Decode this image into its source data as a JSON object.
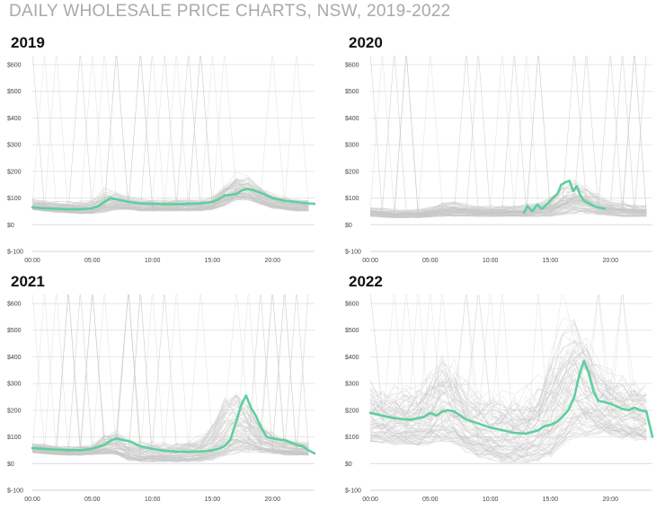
{
  "page_title": "DAILY WHOLESALE PRICE CHARTS, NSW, 2019-2022",
  "colors": {
    "highlight": "#5ecf9e",
    "background_lines": "#c8c8c8",
    "grid": "#e6e6e6",
    "axis": "#d6d6d6",
    "title_gray": "#a9a9a9"
  },
  "chart_data": [
    {
      "type": "line",
      "title": "2019",
      "xlabel": "",
      "ylabel": "",
      "ylim": [
        -100,
        600
      ],
      "xlim": [
        0,
        23.5
      ],
      "y_ticks": [
        -100,
        0,
        100,
        200,
        300,
        400,
        500,
        600
      ],
      "y_tick_labels": [
        "$-100",
        "$0",
        "$100",
        "$200",
        "$300",
        "$400",
        "$500",
        "$600"
      ],
      "x_ticks": [
        0,
        5,
        10,
        15,
        20
      ],
      "x_tick_labels": [
        "00:00",
        "05:00",
        "10:00",
        "15:00",
        "20:00"
      ],
      "grid": true,
      "background_band": {
        "low": [
          55,
          50,
          45,
          42,
          40,
          40,
          45,
          55,
          55,
          50,
          50,
          50,
          50,
          50,
          50,
          55,
          70,
          90,
          90,
          75,
          60,
          55,
          50,
          50
        ],
        "high": [
          100,
          95,
          92,
          90,
          90,
          95,
          140,
          130,
          110,
          105,
          100,
          100,
          100,
          100,
          100,
          110,
          160,
          200,
          190,
          150,
          120,
          110,
          100,
          100
        ]
      },
      "series": [
        {
          "name": "",
          "highlight": true,
          "x": [
            0,
            1,
            2,
            3,
            4,
            5,
            5.5,
            6,
            6.5,
            7,
            8,
            9,
            10,
            11,
            12,
            13,
            14,
            15,
            15.5,
            16,
            16.5,
            17,
            17.5,
            18,
            18.5,
            19,
            19.5,
            20,
            21,
            22,
            23,
            23.5
          ],
          "values": [
            65,
            62,
            60,
            58,
            58,
            62,
            70,
            85,
            100,
            95,
            85,
            80,
            78,
            77,
            77,
            78,
            80,
            85,
            95,
            110,
            112,
            115,
            130,
            135,
            128,
            120,
            110,
            100,
            90,
            85,
            80,
            78
          ]
        }
      ]
    },
    {
      "type": "line",
      "title": "2020",
      "xlabel": "",
      "ylabel": "",
      "ylim": [
        -100,
        600
      ],
      "xlim": [
        0,
        23.5
      ],
      "y_ticks": [
        -100,
        0,
        100,
        200,
        300,
        400,
        500,
        600
      ],
      "y_tick_labels": [
        "$-100",
        "$0",
        "$100",
        "$200",
        "$300",
        "$400",
        "$500",
        "$600"
      ],
      "x_ticks": [
        0,
        5,
        10,
        15,
        20
      ],
      "x_tick_labels": [
        "00:00",
        "05:00",
        "10:00",
        "15:00",
        "20:00"
      ],
      "grid": true,
      "background_band": {
        "low": [
          30,
          28,
          25,
          25,
          25,
          28,
          30,
          30,
          30,
          30,
          30,
          30,
          30,
          30,
          30,
          30,
          35,
          40,
          40,
          35,
          32,
          30,
          30,
          30
        ],
        "high": [
          70,
          65,
          60,
          60,
          62,
          70,
          90,
          90,
          80,
          75,
          75,
          75,
          75,
          80,
          90,
          110,
          150,
          170,
          160,
          120,
          100,
          90,
          80,
          75
        ]
      },
      "series": [
        {
          "name": "",
          "highlight": true,
          "x": [
            12.8,
            13.1,
            13.5,
            13.9,
            14.3,
            14.8,
            15.2,
            15.6,
            15.9,
            16.3,
            16.6,
            16.9,
            17.2,
            17.5,
            17.8,
            18.2,
            18.6,
            19.0,
            19.5
          ],
          "values": [
            45,
            70,
            50,
            75,
            60,
            80,
            100,
            115,
            150,
            160,
            165,
            125,
            145,
            110,
            90,
            80,
            70,
            65,
            60
          ]
        }
      ]
    },
    {
      "type": "line",
      "title": "2021",
      "xlabel": "",
      "ylabel": "",
      "ylim": [
        -100,
        600
      ],
      "xlim": [
        0,
        23.5
      ],
      "y_ticks": [
        -100,
        0,
        100,
        200,
        300,
        400,
        500,
        600
      ],
      "y_tick_labels": [
        "$-100",
        "$0",
        "$100",
        "$200",
        "$300",
        "$400",
        "$500",
        "$600"
      ],
      "x_ticks": [
        0,
        5,
        10,
        15,
        20
      ],
      "x_tick_labels": [
        "00:00",
        "05:00",
        "10:00",
        "15:00",
        "20:00"
      ],
      "grid": true,
      "background_band": {
        "low": [
          40,
          35,
          32,
          30,
          30,
          32,
          35,
          30,
          10,
          5,
          5,
          5,
          5,
          5,
          5,
          10,
          25,
          35,
          40,
          40,
          35,
          30,
          30,
          30
        ],
        "high": [
          80,
          75,
          70,
          70,
          70,
          75,
          110,
          130,
          100,
          90,
          85,
          85,
          85,
          90,
          110,
          160,
          260,
          300,
          240,
          160,
          120,
          100,
          90,
          85
        ]
      },
      "series": [
        {
          "name": "",
          "highlight": true,
          "x": [
            0,
            1,
            2,
            3,
            4,
            5,
            6,
            6.5,
            7,
            7.5,
            8,
            8.5,
            9,
            10,
            11,
            12,
            13,
            14,
            15,
            15.5,
            16,
            16.5,
            17,
            17.4,
            17.8,
            18.2,
            18.6,
            19,
            19.5,
            20,
            20.5,
            21,
            21.5,
            22,
            22.5,
            23,
            23.5
          ],
          "values": [
            58,
            55,
            52,
            50,
            50,
            55,
            70,
            85,
            95,
            88,
            85,
            75,
            65,
            55,
            48,
            45,
            44,
            45,
            50,
            55,
            65,
            90,
            160,
            220,
            255,
            210,
            180,
            140,
            100,
            95,
            90,
            88,
            80,
            70,
            65,
            50,
            38
          ]
        }
      ]
    },
    {
      "type": "line",
      "title": "2022",
      "xlabel": "",
      "ylabel": "",
      "ylim": [
        -100,
        600
      ],
      "xlim": [
        0,
        23.5
      ],
      "y_ticks": [
        -100,
        0,
        100,
        200,
        300,
        400,
        500,
        600
      ],
      "y_tick_labels": [
        "$-100",
        "$0",
        "$100",
        "$200",
        "$300",
        "$400",
        "$500",
        "$600"
      ],
      "x_ticks": [
        0,
        5,
        10,
        15,
        20
      ],
      "x_tick_labels": [
        "00:00",
        "05:00",
        "10:00",
        "15:00",
        "20:00"
      ],
      "grid": true,
      "background_band": {
        "low": [
          80,
          75,
          70,
          65,
          65,
          70,
          80,
          70,
          40,
          20,
          10,
          0,
          0,
          0,
          5,
          20,
          60,
          90,
          100,
          100,
          95,
          90,
          85,
          80
        ],
        "high": [
          320,
          300,
          300,
          310,
          320,
          380,
          450,
          400,
          330,
          300,
          280,
          280,
          290,
          310,
          360,
          480,
          560,
          600,
          520,
          420,
          380,
          360,
          340,
          320
        ]
      },
      "series": [
        {
          "name": "",
          "highlight": true,
          "x": [
            0,
            0.5,
            1,
            1.5,
            2,
            2.5,
            3,
            3.5,
            4,
            4.5,
            5,
            5.5,
            6,
            6.5,
            7,
            7.5,
            8,
            9,
            10,
            11,
            12,
            13,
            14,
            14.5,
            15,
            15.5,
            16,
            16.5,
            17,
            17.4,
            17.8,
            18.2,
            18.6,
            19,
            19.5,
            20,
            20.5,
            21,
            21.5,
            22,
            22.5,
            23,
            23.5
          ],
          "values": [
            190,
            185,
            180,
            175,
            170,
            168,
            165,
            165,
            170,
            175,
            190,
            180,
            195,
            200,
            195,
            180,
            165,
            150,
            135,
            125,
            115,
            112,
            125,
            140,
            145,
            155,
            175,
            200,
            250,
            330,
            385,
            340,
            270,
            235,
            230,
            225,
            215,
            205,
            200,
            210,
            200,
            195,
            100
          ]
        }
      ]
    }
  ]
}
